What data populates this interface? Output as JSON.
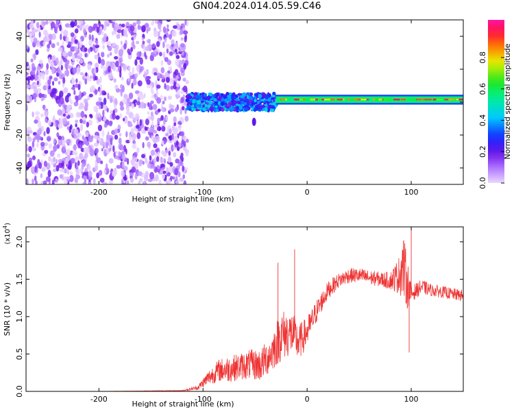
{
  "chart_data": [
    {
      "type": "heatmap",
      "title": "GN04.2024.014.05.59.C46",
      "xlabel": "Height of straight line (km)",
      "ylabel": "Frequency (Hz)",
      "xlim": [
        -270,
        150
      ],
      "ylim": [
        -50,
        50
      ],
      "xticks": [
        -200,
        -100,
        0,
        100
      ],
      "yticks": [
        -40,
        -20,
        0,
        20,
        40
      ],
      "grid": false,
      "colorbar": {
        "label": "Normalized spectral amplitude",
        "range": [
          0.0,
          1.0
        ],
        "ticks": [
          "0.0",
          "0.2",
          "0.4",
          "0.6",
          "0.8"
        ],
        "colormap": "rainbow (white-purple-blue-cyan-green-yellow-red-magenta)"
      },
      "regions": [
        {
          "x_range": [
            -270,
            -115
          ],
          "y_range": [
            -50,
            50
          ],
          "description_values": "scattered noise, amplitude 0.0-0.15"
        },
        {
          "x_range": [
            -115,
            -30
          ],
          "center_frequency_hz": 0,
          "half_width_hz": 5,
          "amplitude": [
            0.15,
            0.45
          ]
        },
        {
          "x_range": [
            -30,
            150
          ],
          "center_frequency_hz": 1.5,
          "half_width_hz": 2,
          "amplitude": [
            0.6,
            1.0
          ]
        }
      ]
    },
    {
      "type": "line",
      "xlabel": "Height of straight line (km)",
      "ylabel": "SNR (10 * v/v)",
      "scale_label": "(x10",
      "scale_exp": "4",
      "scale_close": ")",
      "xlim": [
        -270,
        150
      ],
      "ylim": [
        0,
        2.2
      ],
      "xticks": [
        -200,
        -100,
        0,
        100
      ],
      "yticks": [
        "0.0",
        "0.5",
        "1.0",
        "1.5",
        "2.0"
      ],
      "grid": false,
      "series_color": "#ee3333",
      "x": [
        -270,
        -200,
        -120,
        -105,
        -95,
        -85,
        -75,
        -65,
        -55,
        -45,
        -35,
        -25,
        -15,
        -8,
        0,
        10,
        20,
        30,
        40,
        50,
        60,
        70,
        80,
        88,
        92,
        96,
        100,
        105,
        110,
        120,
        130,
        140,
        150
      ],
      "y": [
        0.0,
        0.0,
        0.01,
        0.05,
        0.18,
        0.28,
        0.3,
        0.33,
        0.36,
        0.35,
        0.5,
        0.75,
        0.78,
        0.65,
        0.8,
        1.1,
        1.35,
        1.48,
        1.55,
        1.55,
        1.52,
        1.5,
        1.48,
        1.55,
        1.7,
        1.45,
        1.3,
        1.35,
        1.4,
        1.35,
        1.33,
        1.3,
        1.28
      ],
      "noise_amplitude": [
        0.0,
        0.0,
        0.005,
        0.03,
        0.1,
        0.15,
        0.18,
        0.18,
        0.2,
        0.22,
        0.25,
        0.35,
        0.3,
        0.25,
        0.2,
        0.15,
        0.12,
        0.1,
        0.1,
        0.1,
        0.1,
        0.1,
        0.12,
        0.25,
        0.45,
        0.35,
        0.12,
        0.1,
        0.1,
        0.08,
        0.08,
        0.08,
        0.08
      ],
      "annotations_peaks": [
        {
          "x": -28,
          "y": 1.72
        },
        {
          "x": -12,
          "y": 1.9
        },
        {
          "x": 100,
          "y": 2.2
        },
        {
          "x": 98,
          "y": 0.52
        }
      ]
    }
  ]
}
